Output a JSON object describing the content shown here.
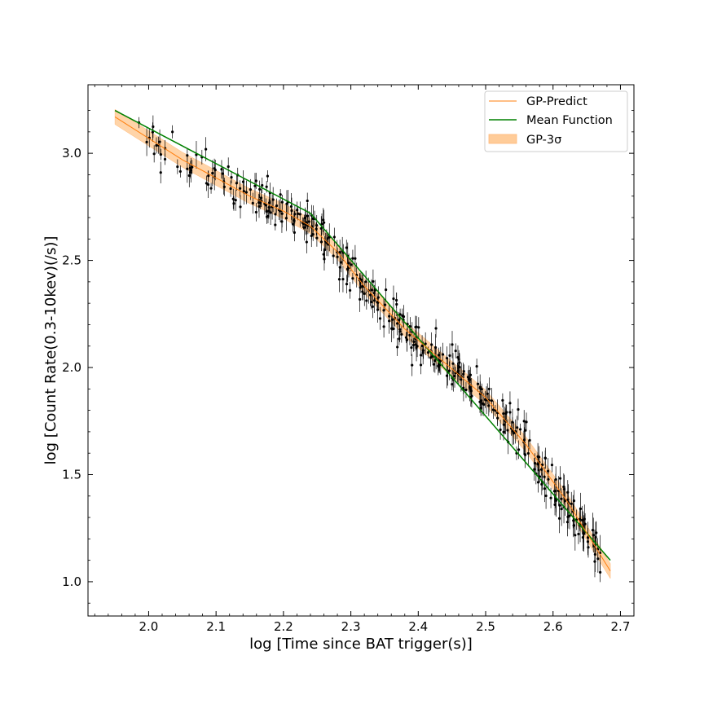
{
  "chart_data": {
    "type": "scatter",
    "xlabel": "log [Time since BAT trigger(s)]",
    "ylabel": "log [Count Rate(0.3-10kev)(/s)]",
    "xlim": [
      1.91,
      2.72
    ],
    "ylim": [
      0.84,
      3.32
    ],
    "xticks": [
      "2.0",
      "2.1",
      "2.2",
      "2.3",
      "2.4",
      "2.5",
      "2.6",
      "2.7"
    ],
    "yticks": [
      "1.0",
      "1.5",
      "2.0",
      "2.5",
      "3.0"
    ],
    "legend_position": "top-right",
    "grid": false,
    "colors": {
      "gp_predict": "#ff7f0e",
      "mean_function": "#008000",
      "gp_band": "#ffcc99",
      "data": "#000000"
    },
    "series": [
      {
        "name": "GP-Predict",
        "kind": "line",
        "x": [
          1.95,
          2.05,
          2.15,
          2.2,
          2.24,
          2.28,
          2.32,
          2.38,
          2.44,
          2.5,
          2.56,
          2.62,
          2.685
        ],
        "y": [
          3.17,
          2.97,
          2.8,
          2.73,
          2.66,
          2.54,
          2.38,
          2.18,
          2.02,
          1.86,
          1.64,
          1.38,
          1.05
        ]
      },
      {
        "name": "Mean Function",
        "kind": "line",
        "x": [
          1.95,
          2.24,
          2.685
        ],
        "y": [
          3.2,
          2.72,
          1.1
        ]
      },
      {
        "name": "GP-3σ",
        "kind": "band",
        "x": [
          1.95,
          2.05,
          2.15,
          2.2,
          2.24,
          2.28,
          2.32,
          2.38,
          2.44,
          2.5,
          2.56,
          2.62,
          2.685
        ],
        "y": [
          3.17,
          2.97,
          2.8,
          2.73,
          2.66,
          2.54,
          2.38,
          2.18,
          2.02,
          1.86,
          1.64,
          1.38,
          1.05
        ],
        "halfwidth": 0.035
      }
    ]
  }
}
